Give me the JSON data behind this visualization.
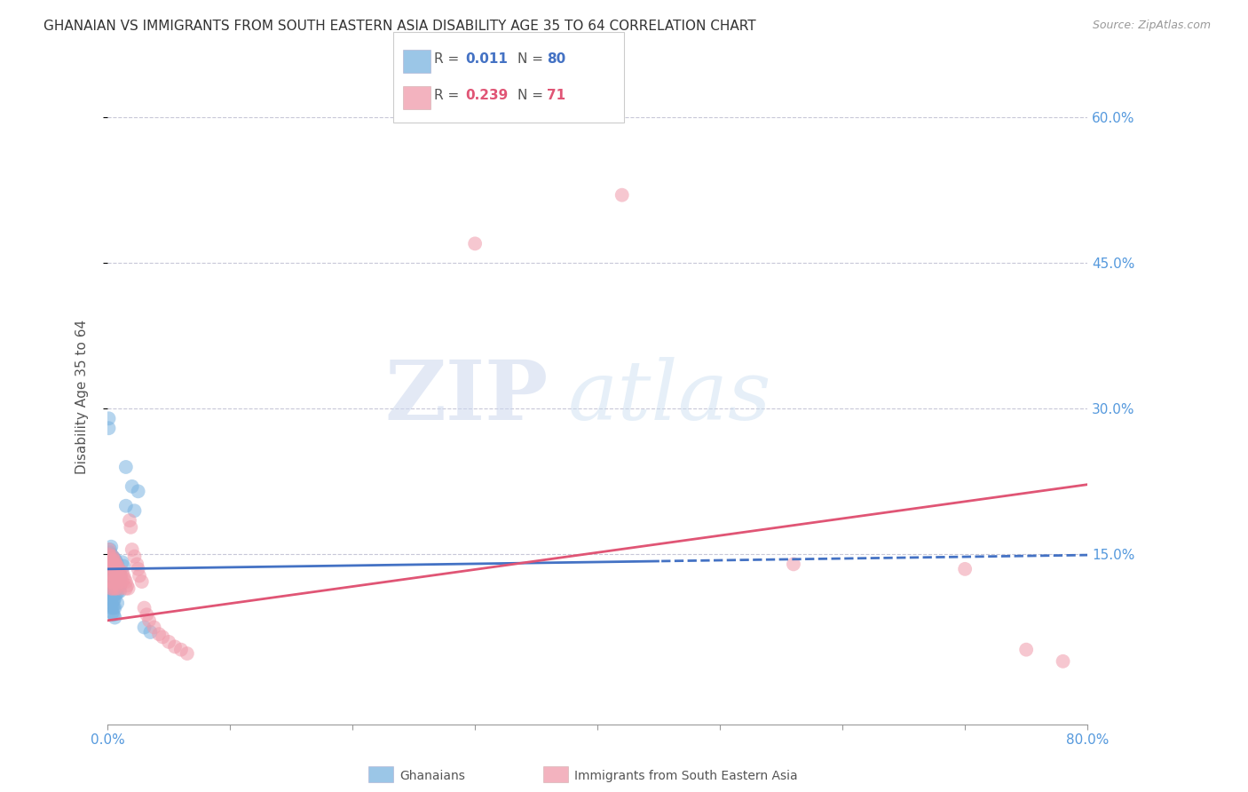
{
  "title": "GHANAIAN VS IMMIGRANTS FROM SOUTH EASTERN ASIA DISABILITY AGE 35 TO 64 CORRELATION CHART",
  "source": "Source: ZipAtlas.com",
  "ylabel": "Disability Age 35 to 64",
  "xlim": [
    0.0,
    0.8
  ],
  "ylim": [
    -0.025,
    0.65
  ],
  "blue_color": "#7ab3e0",
  "pink_color": "#f09aaa",
  "trend_blue_color": "#4472c4",
  "trend_pink_color": "#e05575",
  "grid_color": "#c8c8d8",
  "tick_color": "#5599dd",
  "blue_R": 0.011,
  "blue_N": 80,
  "pink_R": 0.239,
  "pink_N": 71,
  "blue_scatter_x": [
    0.001,
    0.001,
    0.001,
    0.002,
    0.002,
    0.002,
    0.002,
    0.002,
    0.002,
    0.003,
    0.003,
    0.003,
    0.003,
    0.003,
    0.003,
    0.003,
    0.003,
    0.003,
    0.003,
    0.003,
    0.003,
    0.004,
    0.004,
    0.004,
    0.004,
    0.004,
    0.004,
    0.004,
    0.004,
    0.004,
    0.004,
    0.004,
    0.004,
    0.005,
    0.005,
    0.005,
    0.005,
    0.005,
    0.005,
    0.005,
    0.005,
    0.005,
    0.005,
    0.005,
    0.006,
    0.006,
    0.006,
    0.006,
    0.006,
    0.006,
    0.006,
    0.006,
    0.006,
    0.007,
    0.007,
    0.007,
    0.007,
    0.007,
    0.008,
    0.008,
    0.008,
    0.008,
    0.008,
    0.009,
    0.009,
    0.01,
    0.01,
    0.01,
    0.01,
    0.012,
    0.013,
    0.015,
    0.015,
    0.02,
    0.022,
    0.025,
    0.03,
    0.035,
    0.001,
    0.001
  ],
  "blue_scatter_y": [
    0.13,
    0.14,
    0.125,
    0.148,
    0.155,
    0.152,
    0.142,
    0.138,
    0.13,
    0.145,
    0.15,
    0.14,
    0.135,
    0.125,
    0.12,
    0.115,
    0.11,
    0.105,
    0.1,
    0.095,
    0.158,
    0.148,
    0.143,
    0.138,
    0.132,
    0.128,
    0.122,
    0.118,
    0.112,
    0.108,
    0.102,
    0.096,
    0.09,
    0.147,
    0.142,
    0.138,
    0.132,
    0.126,
    0.12,
    0.114,
    0.108,
    0.102,
    0.095,
    0.088,
    0.145,
    0.14,
    0.135,
    0.128,
    0.12,
    0.112,
    0.105,
    0.095,
    0.085,
    0.143,
    0.135,
    0.128,
    0.12,
    0.11,
    0.14,
    0.13,
    0.12,
    0.11,
    0.1,
    0.135,
    0.12,
    0.13,
    0.125,
    0.118,
    0.112,
    0.142,
    0.138,
    0.2,
    0.24,
    0.22,
    0.195,
    0.215,
    0.075,
    0.07,
    0.29,
    0.28
  ],
  "pink_scatter_x": [
    0.001,
    0.001,
    0.002,
    0.002,
    0.002,
    0.003,
    0.003,
    0.003,
    0.003,
    0.003,
    0.004,
    0.004,
    0.004,
    0.004,
    0.004,
    0.004,
    0.005,
    0.005,
    0.005,
    0.005,
    0.005,
    0.006,
    0.006,
    0.006,
    0.006,
    0.006,
    0.007,
    0.007,
    0.007,
    0.007,
    0.008,
    0.008,
    0.008,
    0.009,
    0.009,
    0.01,
    0.01,
    0.01,
    0.011,
    0.012,
    0.012,
    0.013,
    0.014,
    0.015,
    0.015,
    0.016,
    0.017,
    0.018,
    0.019,
    0.02,
    0.022,
    0.024,
    0.025,
    0.026,
    0.028,
    0.03,
    0.032,
    0.034,
    0.038,
    0.042,
    0.045,
    0.05,
    0.055,
    0.06,
    0.065,
    0.3,
    0.42,
    0.56,
    0.7,
    0.75,
    0.78
  ],
  "pink_scatter_y": [
    0.15,
    0.155,
    0.148,
    0.143,
    0.138,
    0.145,
    0.14,
    0.13,
    0.122,
    0.115,
    0.148,
    0.143,
    0.138,
    0.13,
    0.122,
    0.115,
    0.145,
    0.14,
    0.135,
    0.128,
    0.12,
    0.143,
    0.138,
    0.13,
    0.122,
    0.115,
    0.14,
    0.132,
    0.125,
    0.115,
    0.138,
    0.13,
    0.12,
    0.135,
    0.125,
    0.132,
    0.125,
    0.115,
    0.128,
    0.132,
    0.122,
    0.128,
    0.125,
    0.122,
    0.115,
    0.118,
    0.115,
    0.185,
    0.178,
    0.155,
    0.148,
    0.14,
    0.135,
    0.128,
    0.122,
    0.095,
    0.088,
    0.082,
    0.075,
    0.068,
    0.065,
    0.06,
    0.055,
    0.052,
    0.048,
    0.47,
    0.52,
    0.14,
    0.135,
    0.052,
    0.04
  ],
  "watermark_zip": "ZIP",
  "watermark_atlas": "atlas",
  "background_color": "#ffffff",
  "title_fontsize": 11,
  "axis_color": "#555555"
}
